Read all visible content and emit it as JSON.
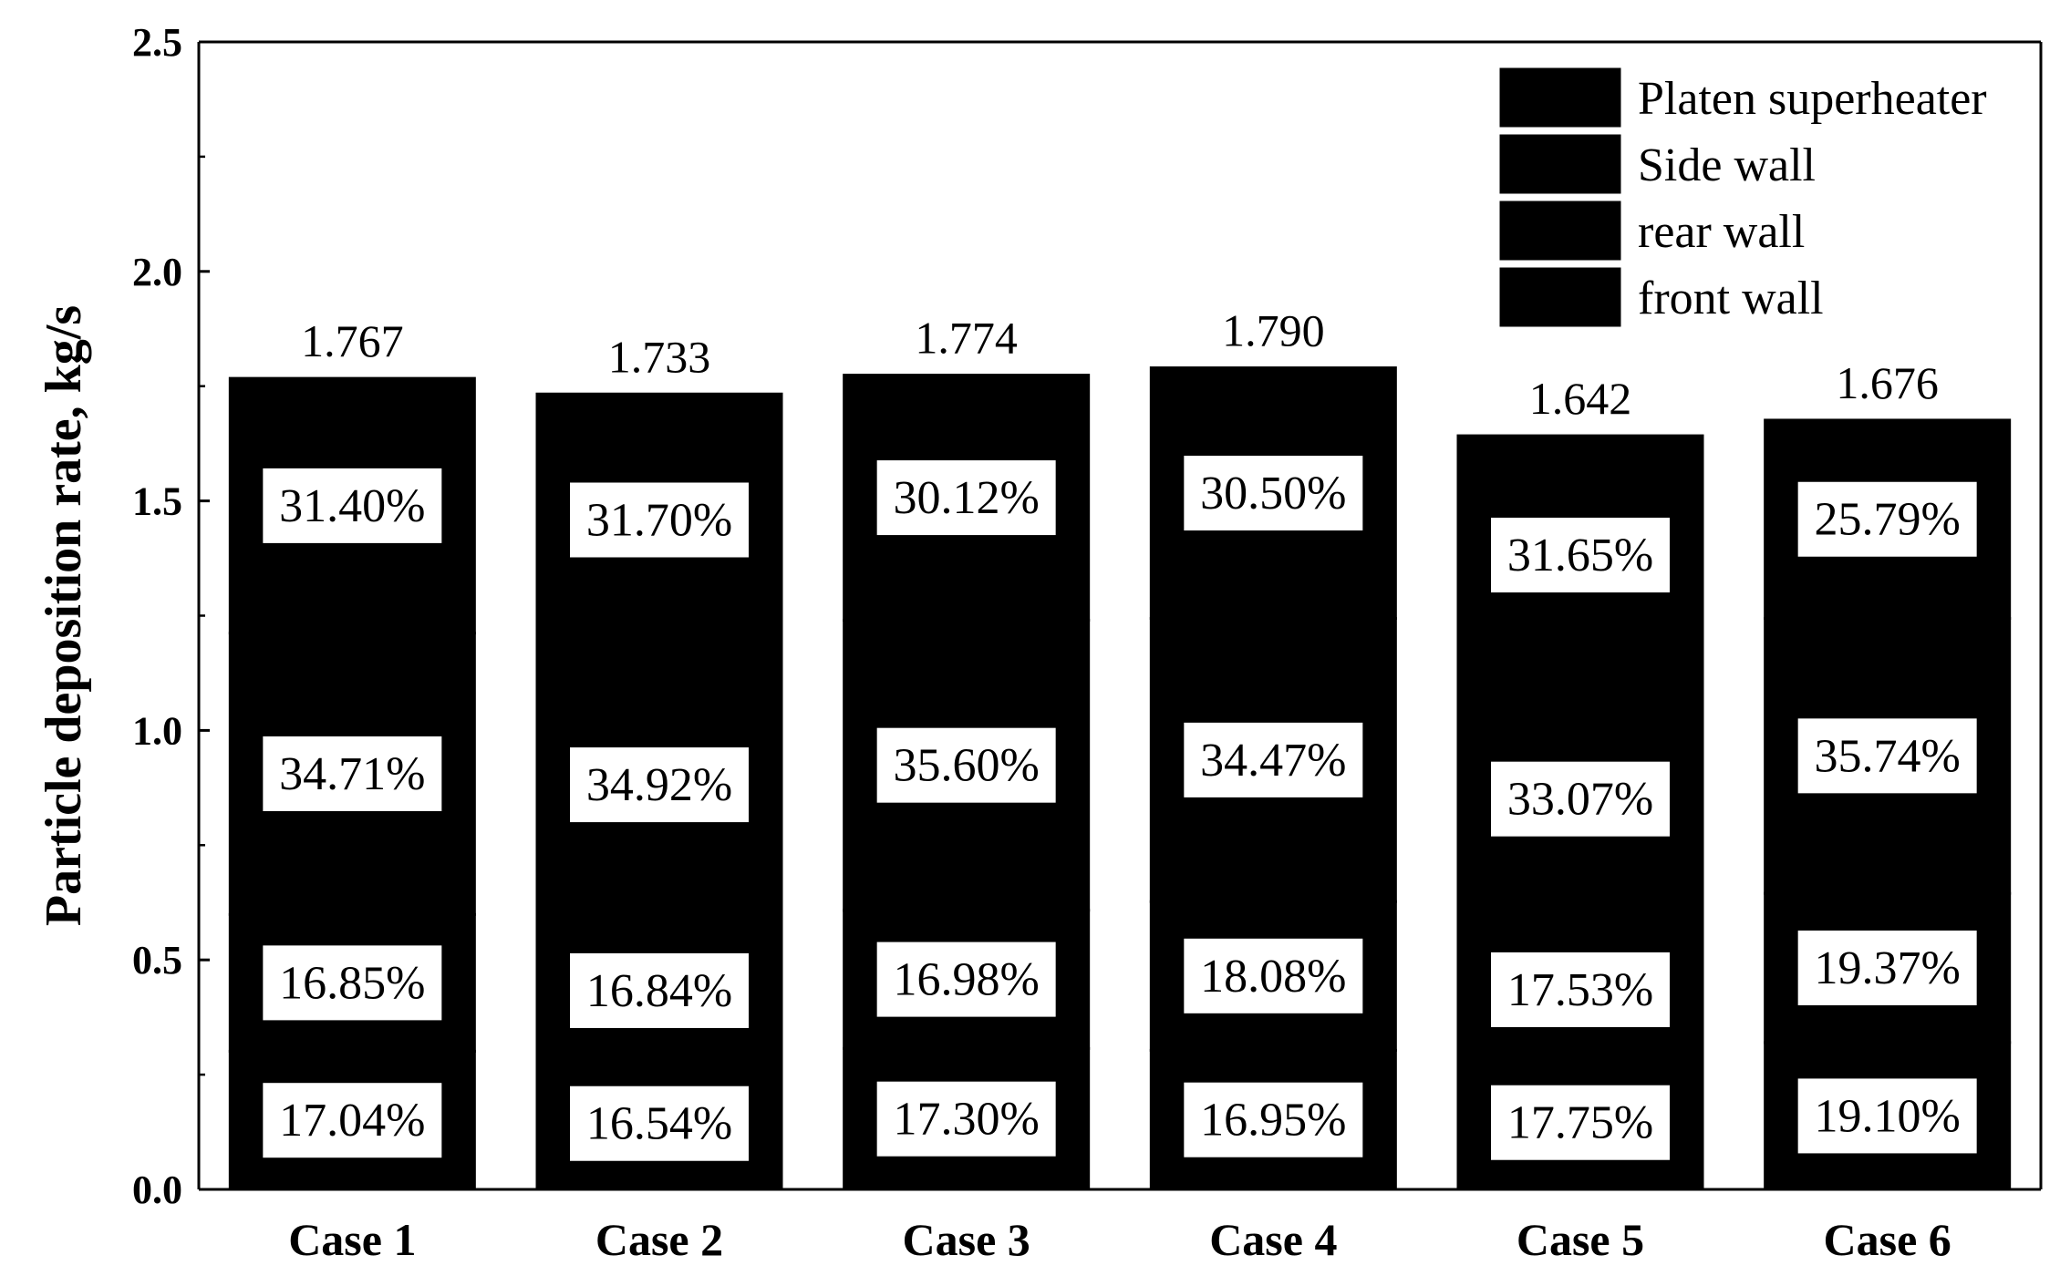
{
  "chart_data": {
    "type": "bar",
    "stacked": true,
    "title": "",
    "xlabel": "",
    "ylabel": "Particle deposition  rate, kg/s",
    "ylim": [
      0,
      2.5
    ],
    "y_ticks": [
      "0.0",
      "0.5",
      "1.0",
      "1.5",
      "2.0",
      "2.5"
    ],
    "categories": [
      "Case 1",
      "Case 2",
      "Case 3",
      "Case 4",
      "Case 5",
      "Case 6"
    ],
    "totals": [
      1.767,
      1.733,
      1.774,
      1.79,
      1.642,
      1.676
    ],
    "total_labels": [
      "1.767",
      "1.733",
      "1.774",
      "1.790",
      "1.642",
      "1.676"
    ],
    "series": [
      {
        "name": "front wall",
        "color": "#fcc98f",
        "pattern": "dots",
        "values": [
          0.301,
          0.287,
          0.307,
          0.303,
          0.291,
          0.32
        ],
        "labels": [
          "17.04%",
          "16.54%",
          "17.30%",
          "16.95%",
          "17.75%",
          "19.10%"
        ]
      },
      {
        "name": "rear wall",
        "color": "#66cc96",
        "pattern": "dense-dots",
        "values": [
          0.298,
          0.292,
          0.301,
          0.324,
          0.288,
          0.325
        ],
        "labels": [
          "16.85%",
          "16.84%",
          "16.98%",
          "18.08%",
          "17.53%",
          "19.37%"
        ]
      },
      {
        "name": "Side wall",
        "color": "#c5b0dd",
        "pattern": "wavy-dots",
        "values": [
          0.613,
          0.605,
          0.632,
          0.617,
          0.543,
          0.599
        ],
        "labels": [
          "34.71%",
          "34.92%",
          "35.60%",
          "34.47%",
          "33.07%",
          "35.74%"
        ]
      },
      {
        "name": "Platen superheater",
        "color": "#f8f4a0",
        "pattern": "bricks",
        "values": [
          0.555,
          0.549,
          0.534,
          0.546,
          0.52,
          0.432
        ],
        "labels": [
          "31.40%",
          "31.70%",
          "30.12%",
          "30.50%",
          "31.65%",
          "25.79%"
        ]
      }
    ],
    "legend_order": [
      "Platen superheater",
      "Side wall",
      "rear wall",
      "front wall"
    ],
    "legend_position": "top-right",
    "grid": false
  }
}
